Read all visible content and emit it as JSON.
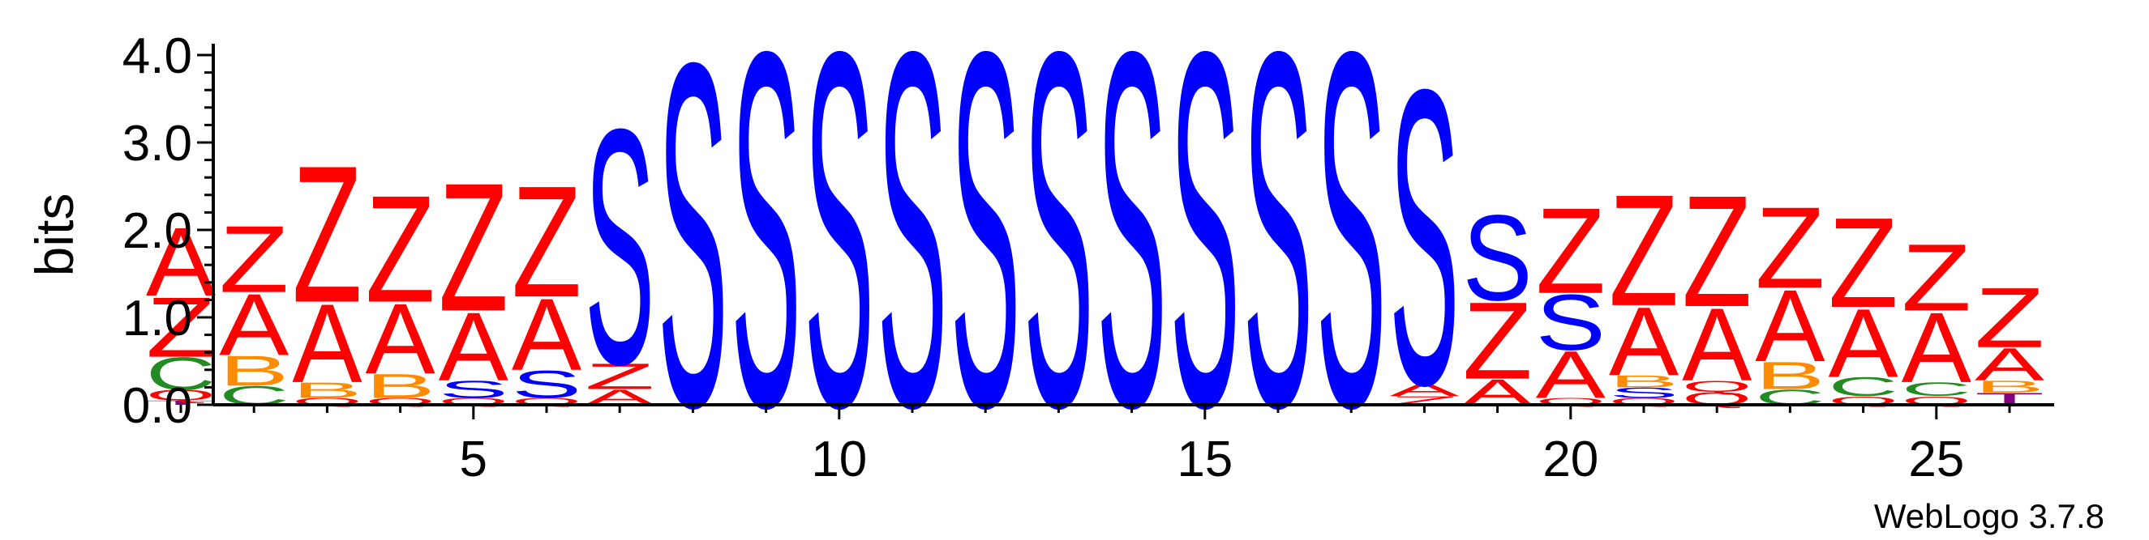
{
  "credit": "WebLogo 3.7.8",
  "colors": {
    "A": "#ff0000",
    "Z": "#ff0000",
    "S": "#0000ff",
    "B": "#ff8c00",
    "C": "#228b22",
    "Q": "#ff0000",
    "T": "#800080"
  },
  "chart_data": {
    "type": "sequence-logo",
    "ylabel": "bits",
    "ylim": [
      0,
      4.0
    ],
    "yticks": [
      "0.0",
      "1.0",
      "2.0",
      "3.0",
      "4.0"
    ],
    "xticks": [
      5,
      10,
      15,
      20,
      25
    ],
    "positions": [
      {
        "pos": 1,
        "stack": [
          [
            "T",
            0.05
          ],
          [
            "Q",
            0.12
          ],
          [
            "C",
            0.38
          ],
          [
            "Z",
            0.7
          ],
          [
            "A",
            0.8
          ]
        ]
      },
      {
        "pos": 2,
        "stack": [
          [
            "C",
            0.22
          ],
          [
            "B",
            0.35
          ],
          [
            "A",
            0.72
          ],
          [
            "Z",
            0.78
          ]
        ]
      },
      {
        "pos": 3,
        "stack": [
          [
            "Q",
            0.08
          ],
          [
            "B",
            0.18
          ],
          [
            "A",
            0.92
          ],
          [
            "Z",
            1.6
          ]
        ]
      },
      {
        "pos": 4,
        "stack": [
          [
            "Q",
            0.08
          ],
          [
            "B",
            0.28
          ],
          [
            "A",
            0.82
          ],
          [
            "Z",
            1.25
          ]
        ]
      },
      {
        "pos": 5,
        "stack": [
          [
            "Q",
            0.08
          ],
          [
            "S",
            0.2
          ],
          [
            "A",
            0.8
          ],
          [
            "Z",
            1.5
          ]
        ]
      },
      {
        "pos": 6,
        "stack": [
          [
            "Q",
            0.08
          ],
          [
            "S",
            0.32
          ],
          [
            "A",
            0.84
          ],
          [
            "Z",
            1.3
          ]
        ]
      },
      {
        "pos": 7,
        "stack": [
          [
            "A",
            0.18
          ],
          [
            "Z",
            0.3
          ],
          [
            "S",
            2.75
          ]
        ]
      },
      {
        "pos": 8,
        "stack": [
          [
            "S",
            4.02
          ]
        ]
      },
      {
        "pos": 9,
        "stack": [
          [
            "S",
            4.15
          ]
        ]
      },
      {
        "pos": 10,
        "stack": [
          [
            "S",
            4.15
          ]
        ]
      },
      {
        "pos": 11,
        "stack": [
          [
            "S",
            4.15
          ]
        ]
      },
      {
        "pos": 12,
        "stack": [
          [
            "S",
            4.15
          ]
        ]
      },
      {
        "pos": 13,
        "stack": [
          [
            "S",
            4.15
          ]
        ]
      },
      {
        "pos": 14,
        "stack": [
          [
            "S",
            4.15
          ]
        ]
      },
      {
        "pos": 15,
        "stack": [
          [
            "S",
            4.15
          ]
        ]
      },
      {
        "pos": 16,
        "stack": [
          [
            "S",
            4.15
          ]
        ]
      },
      {
        "pos": 17,
        "stack": [
          [
            "S",
            4.15
          ]
        ]
      },
      {
        "pos": 18,
        "stack": [
          [
            "Z",
            0.1
          ],
          [
            "A",
            0.15
          ],
          [
            "S",
            3.45
          ]
        ]
      },
      {
        "pos": 19,
        "stack": [
          [
            "A",
            0.3
          ],
          [
            "Z",
            0.9
          ],
          [
            "S",
            1.0
          ]
        ]
      },
      {
        "pos": 20,
        "stack": [
          [
            "Q",
            0.08
          ],
          [
            "A",
            0.55
          ],
          [
            "S",
            0.65
          ],
          [
            "Z",
            1.0
          ]
        ]
      },
      {
        "pos": 21,
        "stack": [
          [
            "Q",
            0.08
          ],
          [
            "S",
            0.12
          ],
          [
            "B",
            0.14
          ],
          [
            "A",
            0.8
          ],
          [
            "Z",
            1.3
          ]
        ]
      },
      {
        "pos": 22,
        "stack": [
          [
            "Q",
            0.15
          ],
          [
            "Q",
            0.13
          ],
          [
            "A",
            0.85
          ],
          [
            "Z",
            1.3
          ]
        ]
      },
      {
        "pos": 23,
        "stack": [
          [
            "C",
            0.18
          ],
          [
            "B",
            0.32
          ],
          [
            "A",
            0.84
          ],
          [
            "Z",
            0.95
          ]
        ]
      },
      {
        "pos": 24,
        "stack": [
          [
            "Q",
            0.1
          ],
          [
            "C",
            0.22
          ],
          [
            "A",
            0.8
          ],
          [
            "Z",
            1.05
          ]
        ]
      },
      {
        "pos": 25,
        "stack": [
          [
            "Q",
            0.1
          ],
          [
            "C",
            0.16
          ],
          [
            "A",
            0.82
          ],
          [
            "Z",
            0.78
          ]
        ]
      },
      {
        "pos": 26,
        "stack": [
          [
            "T",
            0.14
          ],
          [
            "B",
            0.14
          ],
          [
            "A",
            0.38
          ],
          [
            "Z",
            0.7
          ]
        ]
      }
    ]
  }
}
